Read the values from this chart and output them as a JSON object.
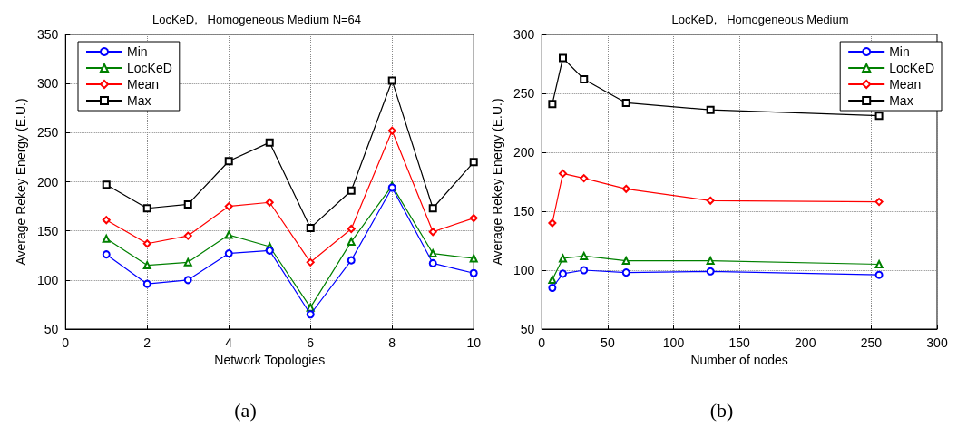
{
  "chart_data": [
    {
      "type": "line",
      "title": "LocKeD,   Homogeneous Medium N=64",
      "xlabel": "Network Topologies",
      "ylabel": "Average Rekey Energy (E.U.)",
      "x": [
        1,
        2,
        3,
        4,
        5,
        6,
        7,
        8,
        9,
        10
      ],
      "xlim": [
        0,
        10
      ],
      "xticks": [
        0,
        2,
        4,
        6,
        8,
        10
      ],
      "ylim": [
        50,
        350
      ],
      "yticks": [
        50,
        100,
        150,
        200,
        250,
        300,
        350
      ],
      "grid": true,
      "legend": "top left",
      "line_style": "solid",
      "annotations": [
        "(a)"
      ],
      "series": [
        {
          "name": "Min",
          "color": "#0000ff",
          "marker": "circle",
          "values": [
            126,
            96,
            100,
            127,
            130,
            65,
            120,
            194,
            117,
            107
          ]
        },
        {
          "name": "LocKeD",
          "color": "#008000",
          "marker": "triangle",
          "values": [
            142,
            115,
            118,
            146,
            134,
            72,
            139,
            196,
            127,
            122
          ]
        },
        {
          "name": "Mean",
          "color": "#ff0000",
          "marker": "diamond",
          "values": [
            161,
            137,
            145,
            175,
            179,
            118,
            152,
            252,
            149,
            163
          ]
        },
        {
          "name": "Max",
          "color": "#000000",
          "marker": "square",
          "values": [
            197,
            173,
            177,
            221,
            240,
            153,
            191,
            303,
            173,
            220
          ]
        }
      ]
    },
    {
      "type": "line",
      "title": "LocKeD,   Homogeneous Medium",
      "xlabel": "Number of nodes",
      "ylabel": "Average Rekey Energy (E.U.)",
      "x": [
        8,
        16,
        32,
        64,
        128,
        256
      ],
      "xlim": [
        0,
        300
      ],
      "xticks": [
        0,
        50,
        100,
        150,
        200,
        250,
        300
      ],
      "ylim": [
        50,
        300
      ],
      "yticks": [
        50,
        100,
        150,
        200,
        250,
        300
      ],
      "grid": true,
      "legend": "top right",
      "line_style": "solid",
      "annotations": [
        "(b)"
      ],
      "series": [
        {
          "name": "Min",
          "color": "#0000ff",
          "marker": "circle",
          "values": [
            85,
            97,
            100,
            98,
            99,
            96
          ]
        },
        {
          "name": "LocKeD",
          "color": "#008000",
          "marker": "triangle",
          "values": [
            92,
            110,
            112,
            108,
            108,
            105
          ]
        },
        {
          "name": "Mean",
          "color": "#ff0000",
          "marker": "diamond",
          "values": [
            140,
            182,
            178,
            169,
            159,
            158
          ]
        },
        {
          "name": "Max",
          "color": "#000000",
          "marker": "square",
          "values": [
            241,
            280,
            262,
            242,
            236,
            231
          ]
        }
      ]
    }
  ]
}
